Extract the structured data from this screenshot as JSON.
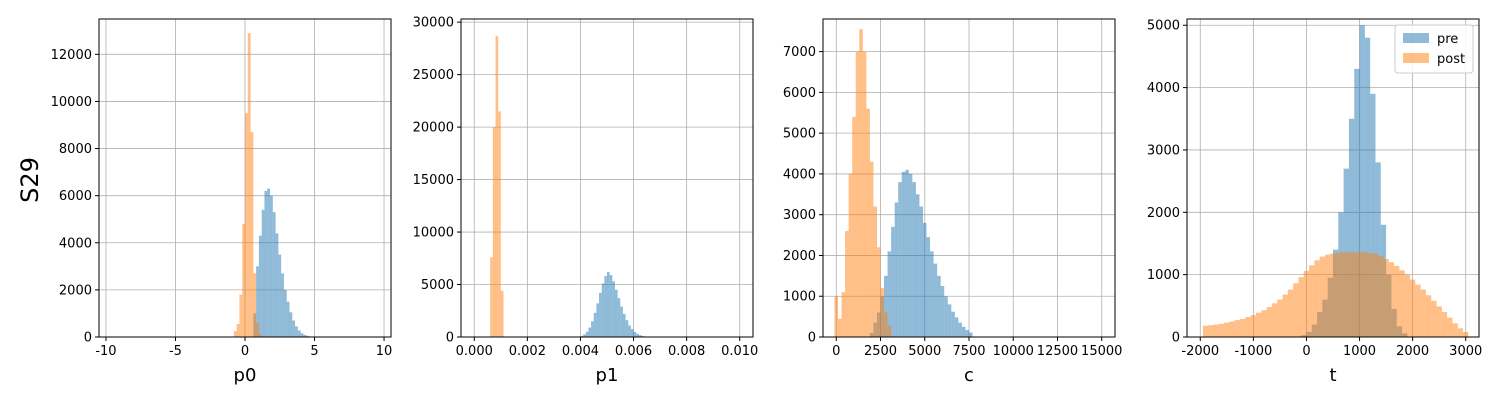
{
  "figure": {
    "row_label": "S29",
    "colors": {
      "pre": "#1f77b4",
      "post": "#ff7f0e",
      "alpha": 0.5,
      "grid": "#b0b0b0"
    }
  },
  "legend": {
    "placement": "top-right",
    "panel": 3,
    "entries": [
      "pre",
      "post"
    ]
  },
  "chart_data": [
    {
      "type": "histogram",
      "xlabel": "p0",
      "xlim": [
        -10.5,
        10.5
      ],
      "ylim": [
        0,
        13500
      ],
      "xticks": [
        -10,
        -5,
        0,
        5,
        10
      ],
      "yticks": [
        0,
        2000,
        4000,
        6000,
        8000,
        10000,
        12000
      ],
      "grid": true,
      "series": [
        {
          "name": "pre",
          "bins": [
            [
              0.6,
              1000
            ],
            [
              0.8,
              3000
            ],
            [
              1.0,
              4300
            ],
            [
              1.2,
              5400
            ],
            [
              1.4,
              6200
            ],
            [
              1.6,
              6300
            ],
            [
              1.8,
              6000
            ],
            [
              2.0,
              5300
            ],
            [
              2.2,
              4400
            ],
            [
              2.4,
              3500
            ],
            [
              2.6,
              2700
            ],
            [
              2.8,
              2000
            ],
            [
              3.0,
              1500
            ],
            [
              3.2,
              1050
            ],
            [
              3.4,
              700
            ],
            [
              3.6,
              450
            ],
            [
              3.8,
              280
            ],
            [
              4.0,
              160
            ],
            [
              4.2,
              90
            ],
            [
              4.4,
              50
            ],
            [
              4.6,
              20
            ]
          ],
          "bin_width": 0.2
        },
        {
          "name": "post",
          "bins": [
            [
              -0.8,
              250
            ],
            [
              -0.6,
              550
            ],
            [
              -0.4,
              1800
            ],
            [
              -0.2,
              4800
            ],
            [
              0.0,
              9500
            ],
            [
              0.2,
              12900
            ],
            [
              0.4,
              8700
            ],
            [
              0.6,
              2700
            ],
            [
              0.8,
              600
            ],
            [
              1.0,
              150
            ]
          ],
          "bin_width": 0.2
        }
      ]
    },
    {
      "type": "histogram",
      "xlabel": "p1",
      "xlim": [
        -0.0005,
        0.0105
      ],
      "ylim": [
        0,
        30300
      ],
      "xticks": [
        0.0,
        0.002,
        0.004,
        0.006,
        0.008,
        0.01
      ],
      "xtick_labels": [
        "0.000",
        "0.002",
        "0.004",
        "0.006",
        "0.008",
        "0.010"
      ],
      "yticks": [
        0,
        5000,
        10000,
        15000,
        20000,
        25000,
        30000
      ],
      "grid": true,
      "series": [
        {
          "name": "pre",
          "bins": [
            [
              0.004,
              100
            ],
            [
              0.0041,
              250
            ],
            [
              0.0042,
              500
            ],
            [
              0.0043,
              900
            ],
            [
              0.0044,
              1500
            ],
            [
              0.0045,
              2300
            ],
            [
              0.0046,
              3200
            ],
            [
              0.0047,
              4200
            ],
            [
              0.0048,
              5100
            ],
            [
              0.0049,
              5800
            ],
            [
              0.005,
              6200
            ],
            [
              0.0051,
              5900
            ],
            [
              0.0052,
              5300
            ],
            [
              0.0053,
              4500
            ],
            [
              0.0054,
              3700
            ],
            [
              0.0055,
              2900
            ],
            [
              0.0056,
              2200
            ],
            [
              0.0057,
              1600
            ],
            [
              0.0058,
              1100
            ],
            [
              0.0059,
              750
            ],
            [
              0.006,
              480
            ],
            [
              0.0061,
              300
            ],
            [
              0.0062,
              180
            ],
            [
              0.0063,
              100
            ],
            [
              0.0064,
              50
            ]
          ],
          "bin_width": 0.0001
        },
        {
          "name": "post",
          "bins": [
            [
              0.0006,
              7600
            ],
            [
              0.0007,
              20000
            ],
            [
              0.0008,
              28700
            ],
            [
              0.0009,
              21500
            ],
            [
              0.001,
              4400
            ]
          ],
          "bin_width": 0.0001
        }
      ]
    },
    {
      "type": "histogram",
      "xlabel": "c",
      "xlim": [
        -750,
        15750
      ],
      "ylim": [
        0,
        7800
      ],
      "xticks": [
        0,
        2500,
        5000,
        7500,
        10000,
        12500,
        15000
      ],
      "yticks": [
        0,
        1000,
        2000,
        3000,
        4000,
        5000,
        6000,
        7000
      ],
      "grid": true,
      "series": [
        {
          "name": "pre",
          "bins": [
            [
              1900,
              100
            ],
            [
              2100,
              350
            ],
            [
              2300,
              600
            ],
            [
              2500,
              1000
            ],
            [
              2700,
              1500
            ],
            [
              2900,
              2100
            ],
            [
              3100,
              2700
            ],
            [
              3300,
              3300
            ],
            [
              3500,
              3800
            ],
            [
              3700,
              4050
            ],
            [
              3900,
              4100
            ],
            [
              4100,
              4000
            ],
            [
              4300,
              3800
            ],
            [
              4500,
              3500
            ],
            [
              4700,
              3200
            ],
            [
              4900,
              2800
            ],
            [
              5100,
              2450
            ],
            [
              5300,
              2100
            ],
            [
              5500,
              1800
            ],
            [
              5700,
              1500
            ],
            [
              5900,
              1250
            ],
            [
              6100,
              1000
            ],
            [
              6300,
              800
            ],
            [
              6500,
              620
            ],
            [
              6700,
              480
            ],
            [
              6900,
              350
            ],
            [
              7100,
              250
            ],
            [
              7300,
              170
            ],
            [
              7500,
              110
            ]
          ],
          "bin_width": 200
        },
        {
          "name": "post",
          "bins": [
            [
              -100,
              1000
            ],
            [
              100,
              450
            ],
            [
              300,
              1100
            ],
            [
              500,
              2600
            ],
            [
              700,
              4000
            ],
            [
              900,
              5400
            ],
            [
              1100,
              7000
            ],
            [
              1300,
              7550
            ],
            [
              1500,
              7000
            ],
            [
              1700,
              5600
            ],
            [
              1900,
              4300
            ],
            [
              2100,
              3200
            ],
            [
              2300,
              2200
            ],
            [
              2500,
              1200
            ],
            [
              2700,
              600
            ],
            [
              2900,
              280
            ]
          ],
          "bin_width": 200
        }
      ]
    },
    {
      "type": "histogram",
      "xlabel": "t",
      "xlim": [
        -2250,
        3250
      ],
      "ylim": [
        0,
        5100
      ],
      "xticks": [
        -2000,
        -1000,
        0,
        1000,
        2000,
        3000
      ],
      "yticks": [
        0,
        1000,
        2000,
        3000,
        4000,
        5000
      ],
      "grid": true,
      "series": [
        {
          "name": "pre",
          "bins": [
            [
              -100,
              30
            ],
            [
              0,
              80
            ],
            [
              100,
              200
            ],
            [
              200,
              400
            ],
            [
              300,
              600
            ],
            [
              400,
              950
            ],
            [
              500,
              1400
            ],
            [
              600,
              2000
            ],
            [
              700,
              2700
            ],
            [
              800,
              3500
            ],
            [
              900,
              4300
            ],
            [
              1000,
              5000
            ],
            [
              1100,
              4800
            ],
            [
              1200,
              3900
            ],
            [
              1300,
              2800
            ],
            [
              1400,
              1800
            ],
            [
              1500,
              1000
            ],
            [
              1600,
              450
            ],
            [
              1700,
              170
            ],
            [
              1800,
              60
            ]
          ],
          "bin_width": 100
        },
        {
          "name": "post",
          "bins": [
            [
              -1950,
              180
            ],
            [
              -1850,
              190
            ],
            [
              -1750,
              200
            ],
            [
              -1650,
              210
            ],
            [
              -1550,
              230
            ],
            [
              -1450,
              250
            ],
            [
              -1350,
              270
            ],
            [
              -1250,
              290
            ],
            [
              -1150,
              320
            ],
            [
              -1050,
              350
            ],
            [
              -950,
              390
            ],
            [
              -850,
              430
            ],
            [
              -750,
              480
            ],
            [
              -650,
              540
            ],
            [
              -550,
              600
            ],
            [
              -450,
              680
            ],
            [
              -350,
              760
            ],
            [
              -250,
              860
            ],
            [
              -150,
              960
            ],
            [
              -50,
              1060
            ],
            [
              50,
              1150
            ],
            [
              150,
              1230
            ],
            [
              250,
              1290
            ],
            [
              350,
              1320
            ],
            [
              450,
              1340
            ],
            [
              550,
              1350
            ],
            [
              650,
              1360
            ],
            [
              750,
              1360
            ],
            [
              850,
              1360
            ],
            [
              950,
              1360
            ],
            [
              1050,
              1360
            ],
            [
              1150,
              1350
            ],
            [
              1250,
              1340
            ],
            [
              1350,
              1300
            ],
            [
              1450,
              1250
            ],
            [
              1550,
              1200
            ],
            [
              1650,
              1140
            ],
            [
              1750,
              1070
            ],
            [
              1850,
              1000
            ],
            [
              1950,
              920
            ],
            [
              2050,
              840
            ],
            [
              2150,
              760
            ],
            [
              2250,
              670
            ],
            [
              2350,
              580
            ],
            [
              2450,
              490
            ],
            [
              2550,
              400
            ],
            [
              2650,
              310
            ],
            [
              2750,
              220
            ],
            [
              2850,
              140
            ],
            [
              2950,
              80
            ]
          ],
          "bin_width": 100
        }
      ]
    }
  ]
}
